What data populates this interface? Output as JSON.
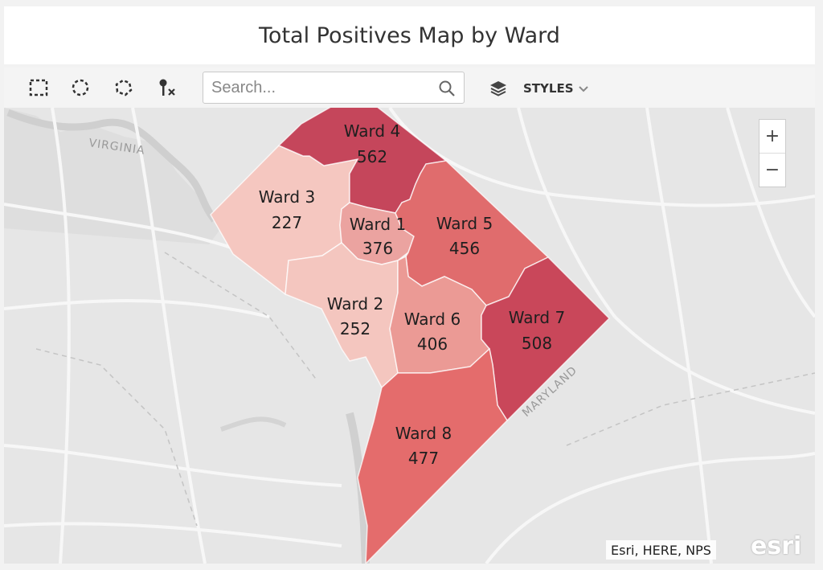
{
  "title": "Total Positives Map by Ward",
  "toolbar": {
    "tools": [
      "rectangle-select-icon",
      "circle-select-icon",
      "lasso-select-icon",
      "clear-selection-icon"
    ],
    "search_placeholder": "Search...",
    "styles_label": "STYLES"
  },
  "map": {
    "region_labels": {
      "virginia": "VIRGINIA",
      "maryland": "MARYLAND"
    },
    "wards": [
      {
        "name": "Ward 1",
        "value": "376",
        "color": "#eba3a0"
      },
      {
        "name": "Ward 2",
        "value": "252",
        "color": "#f4c6bf"
      },
      {
        "name": "Ward 3",
        "value": "227",
        "color": "#f5c7c0"
      },
      {
        "name": "Ward 4",
        "value": "562",
        "color": "#c5465b"
      },
      {
        "name": "Ward 5",
        "value": "456",
        "color": "#e06c6d"
      },
      {
        "name": "Ward 6",
        "value": "406",
        "color": "#eb9a95"
      },
      {
        "name": "Ward 7",
        "value": "508",
        "color": "#c9475a"
      },
      {
        "name": "Ward 8",
        "value": "477",
        "color": "#e46c6c"
      }
    ],
    "zoom_in": "+",
    "zoom_out": "−",
    "attribution": "Esri, HERE, NPS",
    "logo": "esri"
  }
}
